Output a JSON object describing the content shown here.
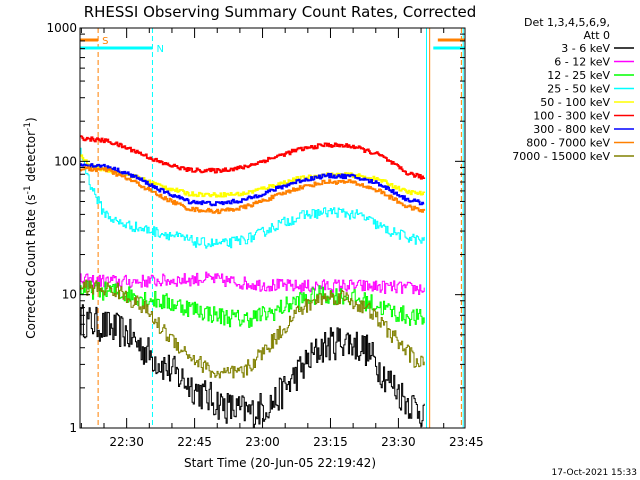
{
  "chart_data": {
    "type": "line",
    "title": "RHESSI Observing Summary Count Rates, Corrected",
    "xlabel": "Start Time (20-Jun-05 22:19:42)",
    "ylabel_main": "Corrected Count Rate (s",
    "ylabel_sup1": "-1",
    "ylabel_mid": " detector",
    "ylabel_sup2": "-1",
    "ylabel_end": ")",
    "y_scale": "log",
    "ylim": [
      1,
      1000
    ],
    "xlim_minutes": [
      0,
      85
    ],
    "x_unit": "minutes after 22:19:42",
    "x_ticks": [
      {
        "t": 10.3,
        "label": "22:30"
      },
      {
        "t": 25.3,
        "label": "22:45"
      },
      {
        "t": 40.3,
        "label": "23:00"
      },
      {
        "t": 55.3,
        "label": "23:15"
      },
      {
        "t": 70.3,
        "label": "23:30"
      },
      {
        "t": 85.3,
        "label": "23:45"
      }
    ],
    "y_ticks": [
      {
        "v": 1,
        "label": "1"
      },
      {
        "v": 10,
        "label": "10"
      },
      {
        "v": 100,
        "label": "100"
      },
      {
        "v": 1000,
        "label": "1000"
      }
    ],
    "legend_header": [
      "Det 1,3,4,5,6,9,",
      "Att 0"
    ],
    "legend_placement": "right",
    "series": [
      {
        "name": "3 - 6 keV",
        "color": "#000000",
        "noise": 0.13,
        "points": [
          [
            0,
            6.5
          ],
          [
            10,
            5.2
          ],
          [
            16,
            3.4
          ],
          [
            22,
            2.4
          ],
          [
            28,
            1.7
          ],
          [
            33,
            1.4
          ],
          [
            38,
            1.3
          ],
          [
            43,
            1.6
          ],
          [
            48,
            2.6
          ],
          [
            53,
            4.0
          ],
          [
            58,
            4.6
          ],
          [
            63,
            3.9
          ],
          [
            68,
            2.3
          ],
          [
            72,
            1.6
          ],
          [
            76,
            1.3
          ]
        ]
      },
      {
        "name": "6 - 12 keV",
        "color": "#ff00ff",
        "noise": 0.05,
        "points": [
          [
            0,
            12.8
          ],
          [
            10,
            12.5
          ],
          [
            20,
            12.8
          ],
          [
            28,
            13.2
          ],
          [
            38,
            12.0
          ],
          [
            48,
            11.5
          ],
          [
            58,
            11.7
          ],
          [
            68,
            11.4
          ],
          [
            76,
            11.0
          ]
        ]
      },
      {
        "name": "12 - 25 keV",
        "color": "#00ff00",
        "noise": 0.07,
        "points": [
          [
            0,
            11.0
          ],
          [
            8,
            10.5
          ],
          [
            16,
            9.2
          ],
          [
            24,
            8.0
          ],
          [
            30,
            7.0
          ],
          [
            36,
            6.5
          ],
          [
            42,
            7.3
          ],
          [
            48,
            9.0
          ],
          [
            53,
            10.0
          ],
          [
            58,
            9.8
          ],
          [
            64,
            8.7
          ],
          [
            70,
            7.2
          ],
          [
            76,
            6.5
          ]
        ]
      },
      {
        "name": "25 - 50 keV",
        "color": "#00ffff",
        "noise": 0.04,
        "points": [
          [
            0,
            120
          ],
          [
            2,
            70
          ],
          [
            5,
            42
          ],
          [
            8,
            35
          ],
          [
            14,
            31
          ],
          [
            20,
            28
          ],
          [
            26,
            24.5
          ],
          [
            32,
            24
          ],
          [
            38,
            27
          ],
          [
            44,
            34
          ],
          [
            50,
            40
          ],
          [
            56,
            42
          ],
          [
            62,
            39
          ],
          [
            68,
            30
          ],
          [
            74,
            26
          ],
          [
            76,
            25
          ]
        ]
      },
      {
        "name": "50 - 100 keV",
        "color": "#ffff00",
        "noise": 0.015,
        "points": [
          [
            0,
            112
          ],
          [
            2,
            92
          ],
          [
            6,
            86
          ],
          [
            12,
            77
          ],
          [
            18,
            65
          ],
          [
            24,
            57
          ],
          [
            30,
            56
          ],
          [
            36,
            57
          ],
          [
            42,
            65
          ],
          [
            48,
            74
          ],
          [
            54,
            79
          ],
          [
            60,
            79
          ],
          [
            66,
            73
          ],
          [
            72,
            59
          ],
          [
            76,
            57
          ]
        ]
      },
      {
        "name": "100 - 300 keV",
        "color": "#ff0000",
        "noise": 0.015,
        "points": [
          [
            0,
            150
          ],
          [
            6,
            142
          ],
          [
            12,
            120
          ],
          [
            18,
            97
          ],
          [
            24,
            86
          ],
          [
            30,
            85
          ],
          [
            36,
            90
          ],
          [
            42,
            105
          ],
          [
            48,
            122
          ],
          [
            54,
            133
          ],
          [
            60,
            130
          ],
          [
            66,
            112
          ],
          [
            72,
            82
          ],
          [
            76,
            75
          ]
        ]
      },
      {
        "name": "300 - 800 keV",
        "color": "#0000ff",
        "noise": 0.015,
        "points": [
          [
            0,
            95
          ],
          [
            6,
            91
          ],
          [
            12,
            77
          ],
          [
            18,
            60
          ],
          [
            24,
            50
          ],
          [
            30,
            48
          ],
          [
            36,
            51
          ],
          [
            42,
            60
          ],
          [
            48,
            71
          ],
          [
            54,
            78
          ],
          [
            60,
            77
          ],
          [
            66,
            68
          ],
          [
            72,
            52
          ],
          [
            76,
            48
          ]
        ]
      },
      {
        "name": "800 - 7000 keV",
        "color": "#ff8000",
        "noise": 0.015,
        "points": [
          [
            0,
            88
          ],
          [
            6,
            86
          ],
          [
            12,
            70
          ],
          [
            18,
            54
          ],
          [
            24,
            44
          ],
          [
            30,
            42
          ],
          [
            36,
            45
          ],
          [
            42,
            53
          ],
          [
            48,
            63
          ],
          [
            54,
            70
          ],
          [
            60,
            70
          ],
          [
            66,
            60
          ],
          [
            72,
            46
          ],
          [
            76,
            42
          ]
        ]
      },
      {
        "name": "7000 - 15000 keV",
        "color": "#808000",
        "noise": 0.06,
        "points": [
          [
            0,
            11.5
          ],
          [
            8,
            10.8
          ],
          [
            14,
            8.0
          ],
          [
            18,
            5.5
          ],
          [
            24,
            3.5
          ],
          [
            30,
            2.5
          ],
          [
            36,
            2.6
          ],
          [
            42,
            4.3
          ],
          [
            48,
            7.5
          ],
          [
            53,
            9.5
          ],
          [
            58,
            9.7
          ],
          [
            64,
            7.5
          ],
          [
            70,
            4.5
          ],
          [
            74,
            3.2
          ],
          [
            76,
            3.0
          ]
        ]
      }
    ],
    "flags": [
      {
        "label": "S",
        "color": "#ff8000",
        "level_from_top": 0.03,
        "segments": [
          [
            0,
            4
          ]
        ]
      },
      {
        "label": "",
        "color": "#ff8000",
        "level_from_top": 0.03,
        "segments": [
          [
            79,
            85
          ]
        ]
      },
      {
        "label": "N",
        "color": "#00ffff",
        "level_from_top": 0.05,
        "segments": [
          [
            0,
            16
          ]
        ]
      },
      {
        "label": "",
        "color": "#00ffff",
        "level_from_top": 0.05,
        "segments": [
          [
            78,
            85
          ]
        ]
      }
    ],
    "markers": [
      {
        "t": 4.0,
        "color": "#ff8000",
        "style": "dashed"
      },
      {
        "t": 16.0,
        "color": "#00ffff",
        "style": "dashed"
      },
      {
        "t": 76.5,
        "color": "#00ffff",
        "style": "solid"
      },
      {
        "t": 77.2,
        "color": "#ff8000",
        "style": "solid"
      },
      {
        "t": 84.2,
        "color": "#ff8000",
        "style": "dashed"
      },
      {
        "t": 84.6,
        "color": "#00ffff",
        "style": "solid"
      }
    ],
    "footer_date": "17-Oct-2021 15:33"
  }
}
